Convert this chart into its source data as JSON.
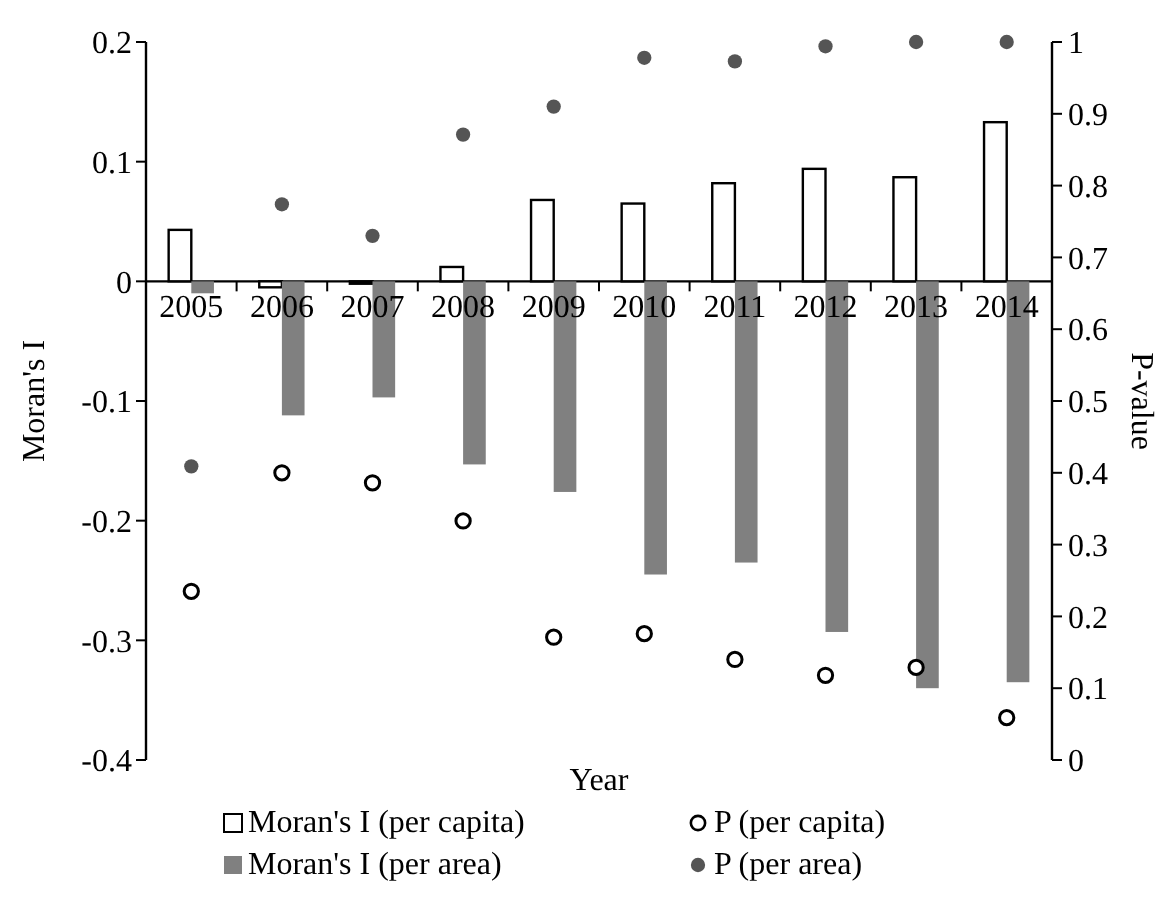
{
  "chart_data": {
    "type": "bar",
    "xlabel": "Year",
    "ylabel": "Moran's I",
    "y2label": "P-value",
    "categories": [
      "2005",
      "2006",
      "2007",
      "2008",
      "2009",
      "2010",
      "2011",
      "2012",
      "2013",
      "2014"
    ],
    "series": [
      {
        "name": "Moran's I (per capita)",
        "color": "#ffffff",
        "values": [
          0.043,
          -0.005,
          -0.002,
          0.012,
          0.068,
          0.065,
          0.082,
          0.094,
          0.087,
          0.133
        ]
      },
      {
        "name": "Moran's I (per area)",
        "color": "#808080",
        "values": [
          -0.01,
          -0.112,
          -0.097,
          -0.153,
          -0.176,
          -0.245,
          -0.235,
          -0.293,
          -0.34,
          -0.335
        ]
      },
      {
        "name": "P (per capita)",
        "type": "scatter",
        "axis": "y2",
        "color": "#ffffff",
        "values": [
          0.235,
          0.4,
          0.386,
          0.333,
          0.171,
          0.176,
          0.14,
          0.118,
          0.129,
          0.059
        ]
      },
      {
        "name": "P (per area)",
        "type": "scatter",
        "axis": "y2",
        "color": "#555555",
        "values": [
          0.409,
          0.774,
          0.73,
          0.871,
          0.91,
          0.978,
          0.973,
          0.994,
          1.0,
          1.0
        ]
      }
    ],
    "ylim": [
      -0.4,
      0.2
    ],
    "yticks": [
      -0.4,
      -0.3,
      -0.2,
      -0.1,
      0,
      0.1,
      0.2
    ],
    "y2lim": [
      0,
      1
    ],
    "y2ticks": [
      0,
      0.1,
      0.2,
      0.3,
      0.4,
      0.5,
      0.6,
      0.7,
      0.8,
      0.9,
      1
    ],
    "marker": "circle",
    "grid": false,
    "legend": "bottom"
  }
}
